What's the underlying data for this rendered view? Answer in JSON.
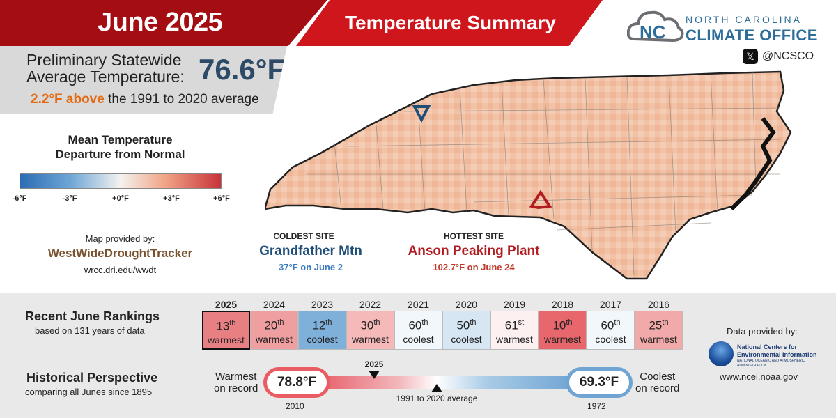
{
  "header": {
    "month": "June 2025",
    "title": "Temperature Summary"
  },
  "statewide": {
    "label_line1": "Preliminary Statewide",
    "label_line2": "Average Temperature:",
    "value": "76.6°F",
    "anomaly_highlight": "2.2°F above",
    "anomaly_rest": "the 1991 to 2020 average"
  },
  "legend": {
    "title_line1": "Mean Temperature",
    "title_line2": "Departure from Normal",
    "ticks": [
      "-6°F",
      "-3°F",
      "+0°F",
      "+3°F",
      "+6°F"
    ]
  },
  "credits": {
    "map_provided": "Map provided by:",
    "provider": "WestWideDroughtTracker",
    "provider_url": "wrcc.dri.edu/wwdt",
    "data_provided": "Data provided by:",
    "noaa_line1": "National Centers for",
    "noaa_line2": "Environmental Information",
    "noaa_line3": "NATIONAL OCEANIC AND ATMOSPHERIC ADMINISTRATION",
    "noaa_url": "www.ncei.noaa.gov"
  },
  "logo": {
    "line1": "NORTH CAROLINA",
    "line2": "CLIMATE OFFICE",
    "social": "@NCSCO",
    "social_icon": "x-icon"
  },
  "sites": {
    "coldest_caption": "COLDEST SITE",
    "coldest_name": "Grandfather Mtn",
    "coldest_detail": "37°F on June 2",
    "hottest_caption": "HOTTEST SITE",
    "hottest_name": "Anson Peaking Plant",
    "hottest_detail": "102.7°F on June 24"
  },
  "rankings": {
    "title": "Recent June Rankings",
    "subtitle": "based on 131 years of data",
    "items": [
      {
        "year": "2025",
        "rank": "13",
        "suffix": "th",
        "word": "warmest",
        "color": "#e87f82"
      },
      {
        "year": "2024",
        "rank": "20",
        "suffix": "th",
        "word": "warmest",
        "color": "#f09fa0"
      },
      {
        "year": "2023",
        "rank": "12",
        "suffix": "th",
        "word": "coolest",
        "color": "#7fb0da"
      },
      {
        "year": "2022",
        "rank": "30",
        "suffix": "th",
        "word": "warmest",
        "color": "#f5b9b9"
      },
      {
        "year": "2021",
        "rank": "60",
        "suffix": "th",
        "word": "coolest",
        "color": "#f2f7fc"
      },
      {
        "year": "2020",
        "rank": "50",
        "suffix": "th",
        "word": "coolest",
        "color": "#d6e6f3"
      },
      {
        "year": "2019",
        "rank": "61",
        "suffix": "st",
        "word": "warmest",
        "color": "#fcf1f0"
      },
      {
        "year": "2018",
        "rank": "10",
        "suffix": "th",
        "word": "warmest",
        "color": "#e8676c"
      },
      {
        "year": "2017",
        "rank": "60",
        "suffix": "th",
        "word": "coolest",
        "color": "#f2f7fc"
      },
      {
        "year": "2016",
        "rank": "25",
        "suffix": "th",
        "word": "warmest",
        "color": "#f2a9aa"
      }
    ]
  },
  "historical": {
    "title": "Historical Perspective",
    "subtitle": "comparing all Junes since 1895",
    "warm_label_1": "Warmest",
    "warm_label_2": "on record",
    "warm_value": "78.8°F",
    "warm_year": "2010",
    "cool_label_1": "Coolest",
    "cool_label_2": "on record",
    "cool_value": "69.3°F",
    "cool_year": "1972",
    "current_marker": "2025",
    "avg_marker": "1991 to 2020 average",
    "current_fraction": 0.2,
    "avg_fraction": 0.45
  },
  "colors": {
    "accent_dark_red": "#a40e13",
    "accent_red": "#d0161d",
    "cold_blue": "#1f4e79",
    "hot_red": "#b01c20"
  }
}
